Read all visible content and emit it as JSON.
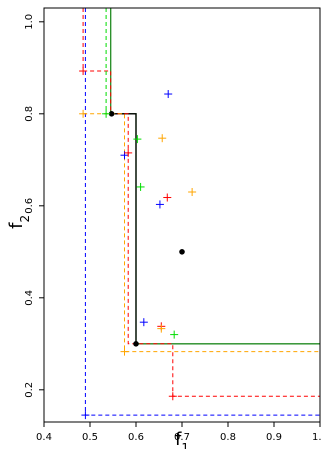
{
  "chart_data": {
    "type": "scatter",
    "xlabel": "f",
    "xlabel_sub": "1",
    "ylabel": "f",
    "ylabel_sub": "2",
    "xlim": [
      0.4,
      1.0
    ],
    "ylim": [
      0.13,
      1.03
    ],
    "xticks": [
      0.4,
      0.5,
      0.6,
      0.7,
      0.8,
      0.9,
      1.0
    ],
    "xtick_labels": [
      "0.4",
      "0.5",
      "0.6",
      "0.7",
      "0.8",
      "0.9",
      "1.0"
    ],
    "yticks": [
      0.2,
      0.4,
      0.6,
      0.8,
      1.0
    ],
    "ytick_labels": [
      "0.2",
      "0.4",
      "0.6",
      "0.8",
      "1.0"
    ],
    "grid": false,
    "legend": "none",
    "attainment_fronts": [
      {
        "color": "#228B22",
        "style": "solid",
        "points": [
          [
            0.545,
            1.03
          ],
          [
            0.545,
            0.8
          ],
          [
            0.6,
            0.8
          ],
          [
            0.6,
            0.3
          ],
          [
            1.0,
            0.3
          ]
        ]
      },
      {
        "color": "#000000",
        "style": "solid",
        "points": [
          [
            0.547,
            0.8
          ],
          [
            0.6,
            0.8
          ],
          [
            0.6,
            0.3
          ]
        ]
      },
      {
        "color": "#0000FF",
        "style": "dashed",
        "points": [
          [
            0.49,
            1.03
          ],
          [
            0.49,
            0.145
          ],
          [
            1.0,
            0.145
          ]
        ]
      },
      {
        "color": "#FF0000",
        "style": "dashed",
        "points": [
          [
            0.485,
            1.03
          ],
          [
            0.485,
            0.893
          ],
          [
            0.545,
            0.893
          ],
          [
            0.545,
            0.8
          ],
          [
            0.583,
            0.8
          ],
          [
            0.583,
            0.3
          ],
          [
            0.68,
            0.3
          ],
          [
            0.68,
            0.186
          ],
          [
            1.0,
            0.186
          ]
        ]
      },
      {
        "color": "#FFA500",
        "style": "dashed",
        "points": [
          [
            0.485,
            0.8
          ],
          [
            0.575,
            0.8
          ],
          [
            0.575,
            0.283
          ],
          [
            1.0,
            0.283
          ]
        ]
      },
      {
        "color": "#00DD00",
        "style": "dashed",
        "points": [
          [
            0.535,
            1.03
          ],
          [
            0.535,
            0.8
          ]
        ]
      }
    ],
    "series": [
      {
        "color": "#000000",
        "marker": "dot",
        "points": [
          [
            0.547,
            0.8
          ],
          [
            0.6,
            0.3
          ],
          [
            0.7,
            0.5
          ]
        ]
      },
      {
        "color": "#0000FF",
        "marker": "plus",
        "points": [
          [
            0.49,
            0.145
          ],
          [
            0.575,
            0.71
          ],
          [
            0.617,
            0.347
          ],
          [
            0.652,
            0.603
          ],
          [
            0.67,
            0.843
          ]
        ]
      },
      {
        "color": "#FF0000",
        "marker": "plus",
        "points": [
          [
            0.485,
            0.893
          ],
          [
            0.583,
            0.715
          ],
          [
            0.655,
            0.338
          ],
          [
            0.668,
            0.618
          ],
          [
            0.68,
            0.186
          ]
        ]
      },
      {
        "color": "#FFA500",
        "marker": "plus",
        "points": [
          [
            0.485,
            0.8
          ],
          [
            0.575,
            0.283
          ],
          [
            0.655,
            0.333
          ],
          [
            0.657,
            0.747
          ],
          [
            0.722,
            0.63
          ]
        ]
      },
      {
        "color": "#00DD00",
        "marker": "plus",
        "points": [
          [
            0.535,
            0.8
          ],
          [
            0.603,
            0.745
          ],
          [
            0.61,
            0.641
          ],
          [
            0.683,
            0.32
          ]
        ]
      }
    ]
  }
}
